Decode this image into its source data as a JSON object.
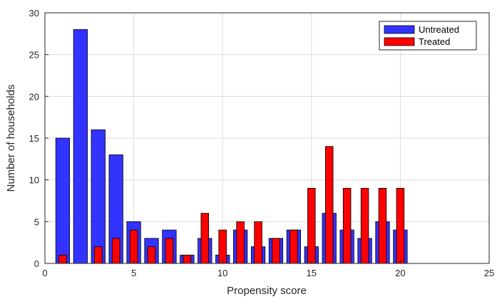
{
  "chart_data": {
    "type": "bar",
    "title": "",
    "xlabel": "Propensity score",
    "ylabel": "Number of households",
    "xlim": [
      0,
      25
    ],
    "ylim": [
      0,
      30
    ],
    "xticks": [
      "0",
      "5",
      "10",
      "15",
      "20",
      "25"
    ],
    "yticks": [
      "0",
      "5",
      "10",
      "15",
      "20",
      "25",
      "30"
    ],
    "grid": true,
    "legend_position": "top-right",
    "categories": [
      1,
      2,
      3,
      4,
      5,
      6,
      7,
      8,
      9,
      10,
      11,
      12,
      13,
      14,
      15,
      16,
      17,
      18,
      19,
      20
    ],
    "series": [
      {
        "name": "Untreated",
        "color": "#3333ff",
        "values": [
          15,
          28,
          16,
          13,
          5,
          3,
          4,
          1,
          3,
          1,
          4,
          2,
          3,
          4,
          2,
          6,
          4,
          3,
          5,
          4
        ]
      },
      {
        "name": "Treated",
        "color": "#ff0000",
        "values": [
          1,
          0,
          2,
          3,
          4,
          2,
          3,
          1,
          6,
          4,
          5,
          5,
          3,
          4,
          9,
          14,
          9,
          9,
          9,
          9
        ]
      }
    ]
  },
  "colors": {
    "untreated": "#3333ff",
    "treated": "#ff0000",
    "grid": "#dcdcdc",
    "axis": "#262626"
  }
}
